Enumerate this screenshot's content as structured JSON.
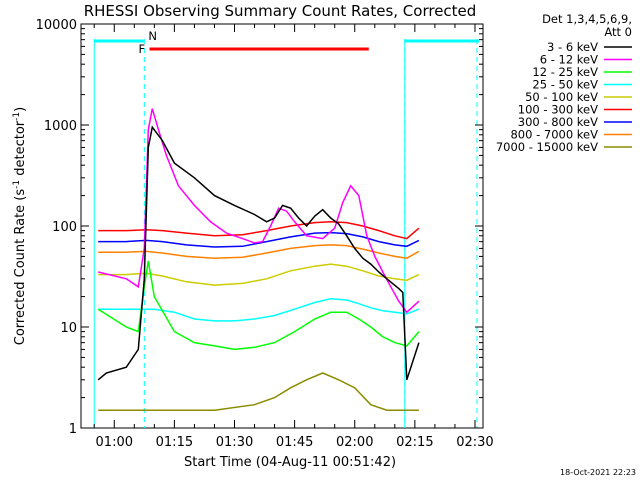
{
  "chart_data": {
    "type": "line",
    "title": "RHESSI Observing Summary Count Rates, Corrected",
    "xlabel": "Start Time (04-Aug-11 00:51:42)",
    "ylabel_main": "Corrected Count Rate (s",
    "ylabel_sup1": "-1",
    "ylabel_mid": " detector",
    "ylabel_sup2": "-1",
    "ylabel_end": ")",
    "x_start_minutes_after_midnight": 51.7,
    "x_range_minutes": [
      51.7,
      152
    ],
    "y_scale": "log",
    "y_range": [
      1,
      10000
    ],
    "x_ticks": [
      "01:00",
      "01:15",
      "01:30",
      "01:45",
      "02:00",
      "02:15",
      "02:30"
    ],
    "y_ticks": [
      "1",
      "10",
      "100",
      "1000",
      "10000"
    ],
    "legend_header": [
      "Det 1,3,4,5,6,9,",
      "Att 0"
    ],
    "series": [
      {
        "name": "3 - 6 keV",
        "color": "#000000",
        "points": [
          [
            56,
            3
          ],
          [
            58,
            3.5
          ],
          [
            63,
            4
          ],
          [
            66,
            6
          ],
          [
            67.5,
            30
          ],
          [
            68.5,
            600
          ],
          [
            69.5,
            950
          ],
          [
            72,
            700
          ],
          [
            75,
            420
          ],
          [
            80,
            300
          ],
          [
            85,
            200
          ],
          [
            90,
            160
          ],
          [
            95,
            130
          ],
          [
            98,
            110
          ],
          [
            100,
            120
          ],
          [
            102,
            160
          ],
          [
            104,
            150
          ],
          [
            106,
            120
          ],
          [
            108,
            100
          ],
          [
            110,
            125
          ],
          [
            112,
            145
          ],
          [
            114,
            120
          ],
          [
            116,
            105
          ],
          [
            118,
            80
          ],
          [
            120,
            60
          ],
          [
            122,
            48
          ],
          [
            124,
            42
          ],
          [
            126,
            35
          ],
          [
            128,
            30
          ],
          [
            131,
            24
          ],
          [
            132,
            22
          ],
          [
            133,
            3
          ],
          [
            136,
            7
          ]
        ]
      },
      {
        "name": "6 - 12 keV",
        "color": "#ff00ff",
        "points": [
          [
            56,
            35
          ],
          [
            63,
            30
          ],
          [
            66,
            25
          ],
          [
            67.5,
            60
          ],
          [
            68.5,
            900
          ],
          [
            69.5,
            1450
          ],
          [
            71,
            900
          ],
          [
            73,
            500
          ],
          [
            76,
            250
          ],
          [
            80,
            160
          ],
          [
            84,
            110
          ],
          [
            88,
            85
          ],
          [
            92,
            75
          ],
          [
            95,
            68
          ],
          [
            97,
            70
          ],
          [
            99,
            100
          ],
          [
            101,
            150
          ],
          [
            103,
            140
          ],
          [
            105,
            110
          ],
          [
            108,
            80
          ],
          [
            112,
            75
          ],
          [
            115,
            95
          ],
          [
            117,
            170
          ],
          [
            119,
            250
          ],
          [
            121,
            200
          ],
          [
            123,
            80
          ],
          [
            125,
            50
          ],
          [
            127,
            35
          ],
          [
            129,
            25
          ],
          [
            131,
            18
          ],
          [
            133,
            14
          ],
          [
            136,
            18
          ]
        ]
      },
      {
        "name": "12 - 25 keV",
        "color": "#00ff00",
        "points": [
          [
            56,
            15
          ],
          [
            63,
            10
          ],
          [
            66,
            9
          ],
          [
            67.5,
            25
          ],
          [
            68.5,
            45
          ],
          [
            70,
            20
          ],
          [
            75,
            9
          ],
          [
            80,
            7
          ],
          [
            85,
            6.5
          ],
          [
            90,
            6
          ],
          [
            95,
            6.3
          ],
          [
            100,
            7
          ],
          [
            105,
            9
          ],
          [
            110,
            12
          ],
          [
            114,
            14
          ],
          [
            118,
            14
          ],
          [
            121,
            12
          ],
          [
            124,
            10
          ],
          [
            127,
            8
          ],
          [
            130,
            7
          ],
          [
            133,
            6.5
          ],
          [
            136,
            9
          ]
        ]
      },
      {
        "name": "25 - 50 keV",
        "color": "#00ffff",
        "points": [
          [
            56,
            15
          ],
          [
            63,
            15
          ],
          [
            66,
            15
          ],
          [
            70,
            15
          ],
          [
            75,
            14
          ],
          [
            80,
            12
          ],
          [
            85,
            11.5
          ],
          [
            90,
            11.5
          ],
          [
            95,
            12
          ],
          [
            100,
            13
          ],
          [
            105,
            15
          ],
          [
            110,
            17.5
          ],
          [
            114,
            19
          ],
          [
            118,
            18.5
          ],
          [
            121,
            17
          ],
          [
            124,
            15.5
          ],
          [
            127,
            14.5
          ],
          [
            130,
            14
          ],
          [
            133,
            13.5
          ],
          [
            136,
            15
          ]
        ]
      },
      {
        "name": "50 - 100 keV",
        "color": "#cccc00",
        "points": [
          [
            56,
            33
          ],
          [
            63,
            33
          ],
          [
            68,
            34
          ],
          [
            72,
            32
          ],
          [
            78,
            28
          ],
          [
            85,
            26
          ],
          [
            92,
            27
          ],
          [
            98,
            30
          ],
          [
            104,
            36
          ],
          [
            110,
            40
          ],
          [
            114,
            42
          ],
          [
            118,
            40
          ],
          [
            122,
            36
          ],
          [
            126,
            32
          ],
          [
            130,
            30
          ],
          [
            133,
            29
          ],
          [
            136,
            33
          ]
        ]
      },
      {
        "name": "100 - 300 keV",
        "color": "#ff0000",
        "points": [
          [
            56,
            90
          ],
          [
            63,
            90
          ],
          [
            68,
            92
          ],
          [
            72,
            90
          ],
          [
            78,
            85
          ],
          [
            85,
            80
          ],
          [
            92,
            82
          ],
          [
            98,
            90
          ],
          [
            104,
            100
          ],
          [
            110,
            108
          ],
          [
            114,
            110
          ],
          [
            118,
            108
          ],
          [
            122,
            100
          ],
          [
            126,
            90
          ],
          [
            130,
            80
          ],
          [
            133,
            75
          ],
          [
            136,
            95
          ]
        ]
      },
      {
        "name": "300 - 800 keV",
        "color": "#0000ff",
        "points": [
          [
            56,
            70
          ],
          [
            63,
            70
          ],
          [
            68,
            72
          ],
          [
            72,
            70
          ],
          [
            78,
            65
          ],
          [
            85,
            62
          ],
          [
            92,
            63
          ],
          [
            98,
            70
          ],
          [
            104,
            78
          ],
          [
            110,
            85
          ],
          [
            114,
            86
          ],
          [
            118,
            84
          ],
          [
            122,
            78
          ],
          [
            126,
            70
          ],
          [
            130,
            65
          ],
          [
            133,
            63
          ],
          [
            136,
            72
          ]
        ]
      },
      {
        "name": "800 - 7000 keV",
        "color": "#ff8000",
        "points": [
          [
            56,
            55
          ],
          [
            63,
            55
          ],
          [
            68,
            56
          ],
          [
            72,
            54
          ],
          [
            78,
            50
          ],
          [
            85,
            48
          ],
          [
            92,
            49
          ],
          [
            98,
            54
          ],
          [
            104,
            60
          ],
          [
            110,
            64
          ],
          [
            114,
            65
          ],
          [
            118,
            64
          ],
          [
            122,
            59
          ],
          [
            126,
            54
          ],
          [
            130,
            50
          ],
          [
            133,
            48
          ],
          [
            136,
            56
          ]
        ]
      },
      {
        "name": "7000 - 15000 keV",
        "color": "#8b8b00",
        "points": [
          [
            56,
            1.5
          ],
          [
            68,
            1.5
          ],
          [
            85,
            1.5
          ],
          [
            95,
            1.7
          ],
          [
            100,
            2
          ],
          [
            104,
            2.5
          ],
          [
            108,
            3
          ],
          [
            112,
            3.5
          ],
          [
            116,
            3
          ],
          [
            120,
            2.5
          ],
          [
            124,
            1.7
          ],
          [
            128,
            1.5
          ],
          [
            133,
            1.5
          ],
          [
            136,
            1.5
          ]
        ]
      }
    ],
    "flags": {
      "flare_label": "F",
      "night_label": "N",
      "flare_interval_minutes": [
        68.8,
        123.5
      ],
      "night_intervals_minutes": [
        [
          55,
          67.5
        ],
        [
          132.5,
          151
        ]
      ],
      "dashed_markers_minutes": [
        67.5,
        132.5,
        150.5
      ],
      "solid_markers_minutes": [
        55,
        132.5
      ],
      "grid": false
    }
  },
  "timestamp": "18-Oct-2021 22:23"
}
